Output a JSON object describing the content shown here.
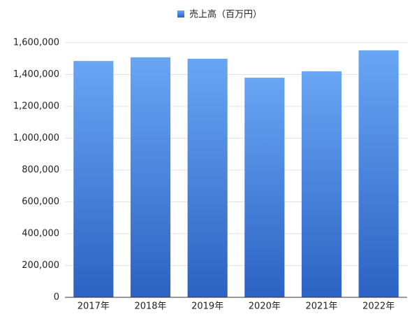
{
  "chart_data": {
    "type": "bar",
    "categories": [
      "2017年",
      "2018年",
      "2019年",
      "2020年",
      "2021年",
      "2022年"
    ],
    "series": [
      {
        "name": "売上高（百万円）",
        "color": "#68a6f4",
        "gradient_to": "#2c62c3",
        "values": [
          1485000,
          1508000,
          1499000,
          1380000,
          1420000,
          1552000
        ]
      }
    ],
    "ylim": [
      0,
      1600000
    ],
    "yticks": [
      0,
      {
        "value": 200000,
        "label": "200,000"
      },
      {
        "value": 400000,
        "label": "400,000"
      },
      {
        "value": 600000,
        "label": "600,000"
      },
      {
        "value": 800000,
        "label": "800,000"
      },
      {
        "value": 1000000,
        "label": "1,000,000"
      },
      {
        "value": 1200000,
        "label": "1,200,000"
      },
      {
        "value": 1400000,
        "label": "1,400,000"
      },
      {
        "value": 1600000,
        "label": "1,600,000"
      }
    ],
    "grid": true,
    "legend": "top"
  }
}
